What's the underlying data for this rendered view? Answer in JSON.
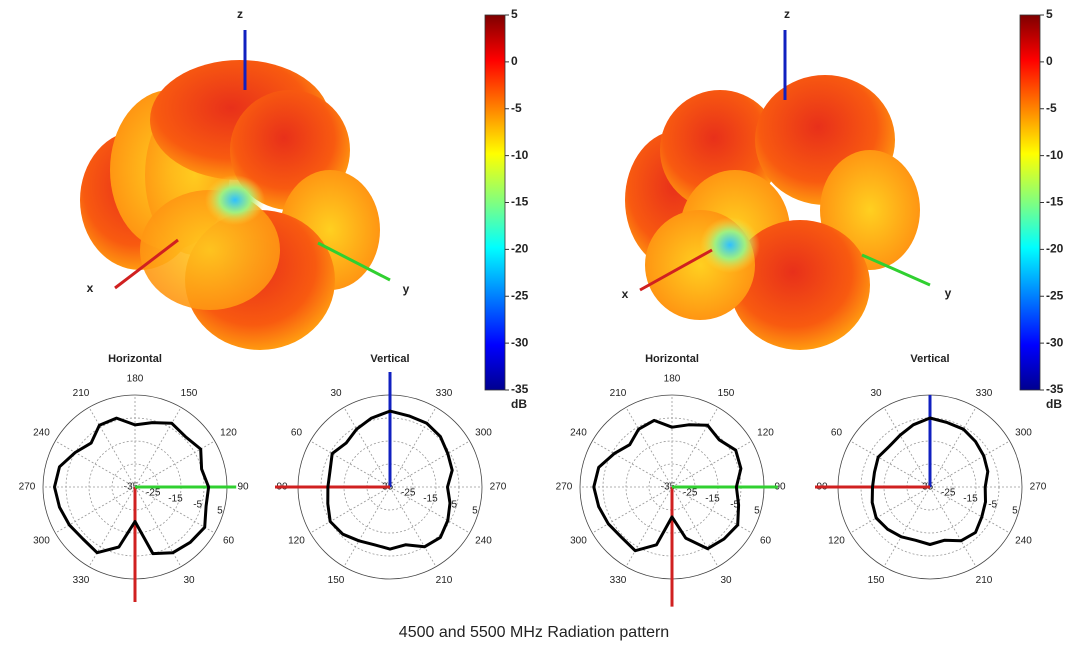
{
  "caption": "4500 and 5500 MHz Radiation pattern",
  "figures": [
    {
      "axis_labels": {
        "x": "x",
        "y": "y",
        "z": "z"
      },
      "colorbar": {
        "clim": [
          -35,
          5
        ],
        "ticks": [
          5,
          0,
          -5,
          -10,
          -15,
          -20,
          -25,
          -30,
          -35
        ],
        "unit": "dB"
      }
    },
    {
      "axis_labels": {
        "x": "x",
        "y": "y",
        "z": "z"
      },
      "colorbar": {
        "clim": [
          -35,
          5
        ],
        "ticks": [
          5,
          0,
          -5,
          -10,
          -15,
          -20,
          -25,
          -30,
          -35
        ],
        "unit": "dB"
      }
    }
  ],
  "chart_data": [
    {
      "type": "polar",
      "title": "Horizontal",
      "theta_zero": "bottom",
      "theta_direction": "counterclockwise",
      "theta": [
        0,
        15,
        30,
        45,
        60,
        75,
        90,
        105,
        120,
        135,
        150,
        165,
        180,
        195,
        210,
        225,
        240,
        255,
        270,
        285,
        300,
        315,
        330,
        345
      ],
      "series": [
        {
          "color": "#000000",
          "values": [
            -20,
            -5,
            -2,
            -1,
            0,
            -3,
            -3,
            -5,
            -2,
            -4,
            -3,
            -6,
            -8,
            -4,
            -4,
            -8,
            -5,
            -1,
            0,
            -1,
            -2,
            -3,
            -2,
            -8
          ]
        }
      ],
      "rlim": [
        -35,
        5
      ],
      "rticks": [
        -35,
        -25,
        -15,
        -5,
        5
      ],
      "thetaticks": [
        30,
        60,
        90,
        120,
        150,
        180,
        210,
        240,
        270,
        300,
        330
      ]
    },
    {
      "type": "polar",
      "title": "Vertical",
      "theta_zero": "top",
      "theta_direction": "counterclockwise",
      "theta": [
        0,
        15,
        30,
        45,
        60,
        75,
        90,
        105,
        120,
        135,
        150,
        165,
        180,
        195,
        210,
        225,
        240,
        255,
        270,
        285,
        300,
        315,
        330,
        345
      ],
      "series": [
        {
          "color": "#000000",
          "values": [
            -2,
            -4,
            -6,
            -8,
            -6,
            -8,
            -8,
            -7,
            -5,
            -6,
            -8,
            -9,
            -8,
            -9,
            -5,
            -4,
            -6,
            -8,
            -10,
            -7,
            -6,
            -4,
            -3,
            -3
          ]
        }
      ],
      "rlim": [
        -35,
        5
      ],
      "rticks": [
        -35,
        -25,
        -15,
        -5,
        5
      ],
      "thetaticks": [
        30,
        60,
        90,
        120,
        150,
        210,
        240,
        270,
        300,
        330
      ]
    },
    {
      "type": "polar",
      "title": "Horizontal",
      "theta_zero": "bottom",
      "theta_direction": "counterclockwise",
      "theta": [
        0,
        15,
        30,
        45,
        60,
        75,
        90,
        105,
        120,
        135,
        150,
        165,
        180,
        195,
        210,
        225,
        240,
        255,
        270,
        285,
        300,
        315,
        330,
        345
      ],
      "series": [
        {
          "color": "#000000",
          "values": [
            -22,
            -12,
            -4,
            -3,
            -2,
            -5,
            -7,
            -4,
            -3,
            -6,
            -4,
            -7,
            -9,
            -5,
            -6,
            -9,
            -6,
            -2,
            -1,
            -2,
            -3,
            -4,
            -3,
            -9
          ]
        }
      ],
      "rlim": [
        -35,
        5
      ],
      "rticks": [
        -35,
        -25,
        -15,
        -5,
        5
      ],
      "thetaticks": [
        30,
        60,
        90,
        120,
        150,
        180,
        210,
        240,
        270,
        300,
        330
      ]
    },
    {
      "type": "polar",
      "title": "Vertical",
      "theta_zero": "top",
      "theta_direction": "counterclockwise",
      "theta": [
        0,
        15,
        30,
        45,
        60,
        75,
        90,
        105,
        120,
        135,
        150,
        165,
        180,
        195,
        210,
        225,
        240,
        255,
        270,
        285,
        300,
        315,
        330,
        345
      ],
      "series": [
        {
          "color": "#000000",
          "values": [
            -5,
            -7,
            -9,
            -10,
            -9,
            -10,
            -10,
            -9,
            -8,
            -9,
            -10,
            -11,
            -10,
            -11,
            -8,
            -7,
            -9,
            -10,
            -11,
            -9,
            -8,
            -7,
            -6,
            -6
          ]
        }
      ],
      "rlim": [
        -35,
        5
      ],
      "rticks": [
        -35,
        -25,
        -15,
        -5,
        5
      ],
      "thetaticks": [
        30,
        60,
        90,
        120,
        150,
        210,
        240,
        270,
        300,
        330
      ]
    }
  ]
}
